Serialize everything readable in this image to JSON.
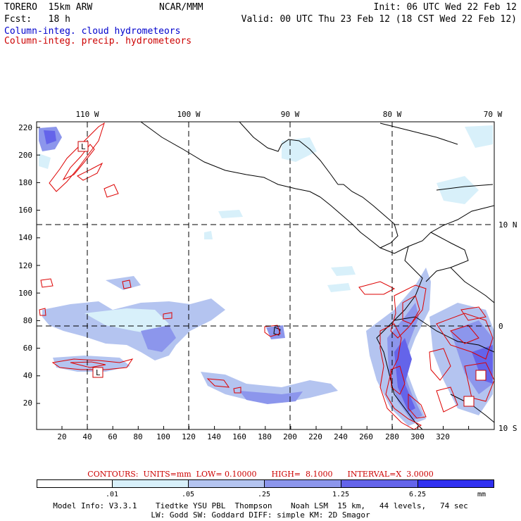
{
  "header": {
    "model": "TORERO  15km ARW",
    "center": "NCAR/MMM",
    "init": "Init: 06 UTC Wed 22 Feb 12",
    "fcst": "Fcst:   18 h",
    "valid": "Valid: 00 UTC Thu 23 Feb 12 (18 CST Wed 22 Feb 12)",
    "field1": "Column-integ. cloud hydrometeors",
    "field2": "Column-integ. precip. hydrometeors"
  },
  "map": {
    "lon_labels": [
      "110 W",
      "100 W",
      "90 W",
      "80 W",
      "70 W"
    ],
    "lat_labels": [
      "10 N",
      "0",
      "10 S"
    ],
    "y_ticks": [
      "220",
      "200",
      "180",
      "160",
      "140",
      "120",
      "100",
      "80",
      "60",
      "40",
      "20"
    ],
    "x_ticks": [
      "20",
      "40",
      "60",
      "80",
      "100",
      "120",
      "140",
      "160",
      "180",
      "200",
      "220",
      "240",
      "260",
      "280",
      "300",
      "320"
    ],
    "extrema_labels": [
      "L",
      "L"
    ]
  },
  "legend": {
    "contours": "CONTOURS:  UNITS=mm  LOW= 0.10000      HIGH=  8.1000      INTERVAL=X  3.0000",
    "levels": [
      ".01",
      ".05",
      ".25",
      "1.25",
      "6.25",
      "mm"
    ],
    "colors": [
      "#ffffff",
      "#d8f0fa",
      "#b4c4f0",
      "#8c96ec",
      "#6464ea",
      "#3030f0"
    ]
  },
  "footer": {
    "line1": "Model Info: V3.3.1    Tiedtke YSU PBL  Thompson    Noah LSM  15 km,   44 levels,   74 sec",
    "line2": "LW: Godd SW: Goddard DIFF: simple KM: 2D Smagor"
  }
}
